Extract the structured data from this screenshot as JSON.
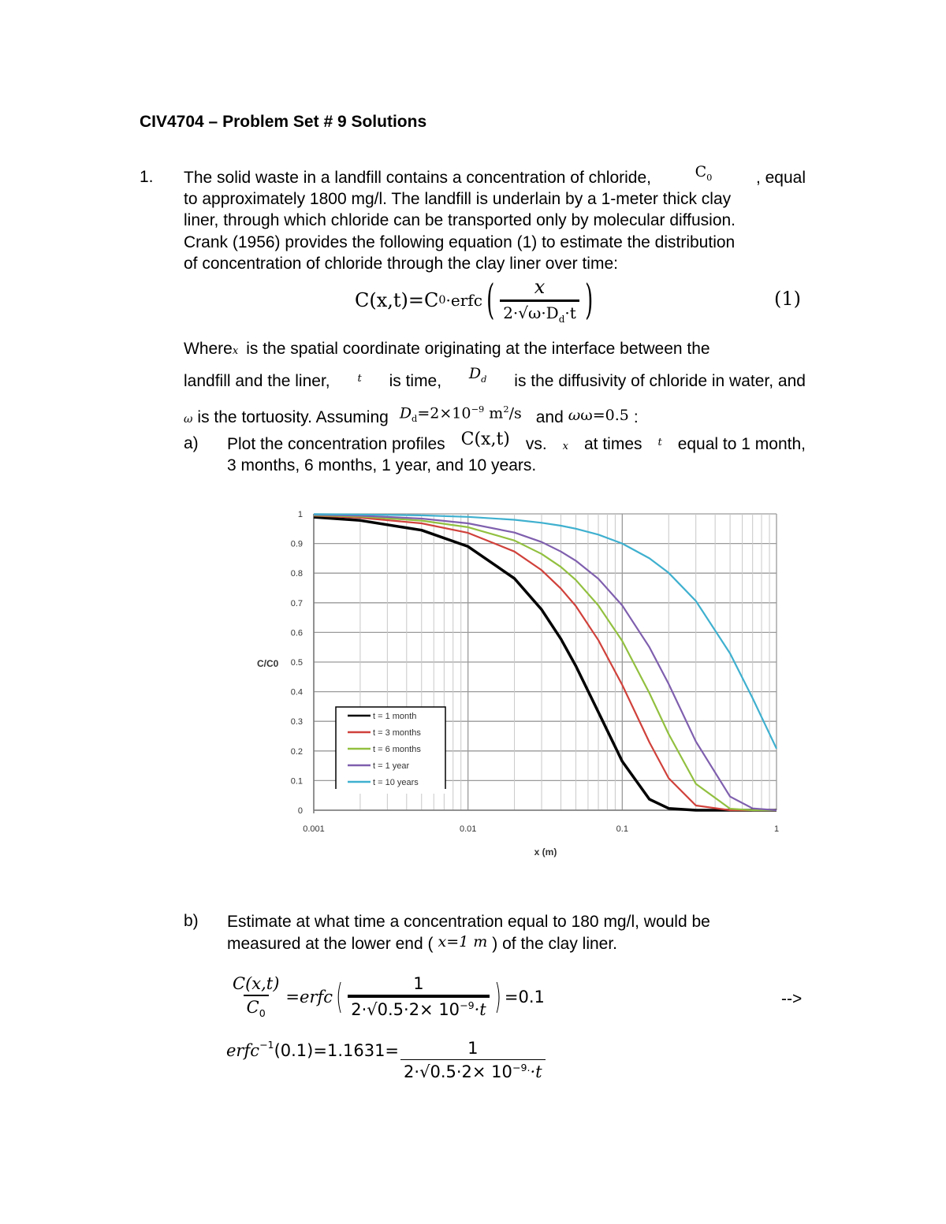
{
  "title": "CIV4704 – Problem Set # 9 Solutions",
  "problem1": {
    "number": "1.",
    "lines": [
      [
        "The solid waste in a landfill contains a concentration of chloride,",
        "C",
        "0",
        ", equal"
      ],
      [
        "to approximately 1800 mg/l. The landfill is underlain by a 1-meter thick clay"
      ],
      [
        "liner, through which chloride can be transported only by molecular diffusion."
      ],
      [
        "Crank (1956) provides the following equation (1) to estimate the distribution"
      ],
      [
        "of concentration of chloride through the clay liner over time:"
      ]
    ],
    "equation1": {
      "lhs": "C(x,t)=C",
      "lhs_sub": "0",
      "func": "·erfc",
      "numerator": "x",
      "denominator": "2·√ω·D",
      "denominator_sub": "d",
      "denominator_tail": "·t",
      "number": "(1)"
    },
    "where_line1": [
      "Where",
      "x",
      "is the spatial coordinate originating at the interface between the"
    ],
    "where_line2": [
      "landfill and the liner,",
      "t",
      "is time,",
      "D",
      "d",
      "is the diffusivity of chloride in water, and"
    ],
    "where_line3": [
      "ω",
      "is the tortuosity. Assuming",
      "D",
      "d",
      "=2×10",
      "−9",
      " m",
      "2",
      "/s",
      "and",
      "ω=0.5",
      ":"
    ],
    "part_a": {
      "label": "a)",
      "line1": [
        "Plot the concentration profiles",
        "C(x,t)",
        "vs.",
        "x",
        "at times",
        "t",
        "equal to 1 month,"
      ],
      "line2": "3 months, 6 months, 1 year, and 10 years."
    },
    "part_b": {
      "label": "b)",
      "line1": "Estimate at what time a concentration equal to 180 mg/l, would be",
      "line2_pre": "measured at the lower end (",
      "line2_math": "x=1 m",
      "line2_post": ") of the clay liner.",
      "eq2": {
        "num": "C(x,t)",
        "den": "C",
        "den_sub": "0",
        "mid": "=erfc",
        "inner_num": "1",
        "inner_den": "2·√0.5·2× 10",
        "inner_exp": "−9",
        "inner_tail": "·t",
        "rhs": "=0.1",
        "arrow": "-->"
      },
      "eq3": {
        "lhs": "erfc",
        "lhs_exp": "−1",
        "lhs_tail": "(0.1)=1.1631=",
        "num": "1",
        "den": "2·√0.5·2× 10",
        "den_exp": "−9.",
        "den_tail": "·t"
      }
    }
  },
  "chart_data": {
    "type": "line",
    "xlabel": "x (m)",
    "ylabel": "C/C0",
    "x_scale": "log",
    "xlim": [
      0.001,
      1
    ],
    "ylim": [
      0,
      1
    ],
    "x_ticks": [
      "0.001",
      "0.01",
      "0.1",
      "1"
    ],
    "y_ticks": [
      "0",
      "0.1",
      "0.2",
      "0.3",
      "0.4",
      "0.5",
      "0.6",
      "0.7",
      "0.8",
      "0.9",
      "1"
    ],
    "grid": true,
    "legend_position": "bottom-left",
    "x": [
      0.001,
      0.002,
      0.005,
      0.01,
      0.02,
      0.03,
      0.04,
      0.05,
      0.07,
      0.1,
      0.15,
      0.2,
      0.3,
      0.5,
      0.7,
      1
    ],
    "series": [
      {
        "name": "t = 1 month",
        "color": "#000000",
        "values": [
          0.989,
          0.978,
          0.945,
          0.89,
          0.782,
          0.677,
          0.578,
          0.487,
          0.331,
          0.165,
          0.037,
          0.006,
          0.0,
          0.0,
          0.0,
          0.0
        ]
      },
      {
        "name": "t = 3 months",
        "color": "#d0413b",
        "values": [
          0.994,
          0.987,
          0.968,
          0.936,
          0.873,
          0.81,
          0.748,
          0.689,
          0.574,
          0.423,
          0.229,
          0.108,
          0.016,
          0.0,
          0.0,
          0.0
        ]
      },
      {
        "name": "t = 6 months",
        "color": "#92c040",
        "values": [
          0.995,
          0.991,
          0.977,
          0.955,
          0.91,
          0.865,
          0.821,
          0.777,
          0.691,
          0.571,
          0.395,
          0.257,
          0.089,
          0.005,
          0.0,
          0.0
        ]
      },
      {
        "name": "t = 1 year",
        "color": "#7f5fae",
        "values": [
          0.997,
          0.994,
          0.984,
          0.968,
          0.937,
          0.905,
          0.873,
          0.842,
          0.781,
          0.691,
          0.55,
          0.426,
          0.232,
          0.046,
          0.006,
          0.0
        ]
      },
      {
        "name": "t = 10 years",
        "color": "#3fb0cf",
        "values": [
          0.999,
          0.998,
          0.995,
          0.99,
          0.98,
          0.97,
          0.96,
          0.95,
          0.93,
          0.9,
          0.85,
          0.801,
          0.706,
          0.529,
          0.378,
          0.208
        ]
      }
    ]
  }
}
